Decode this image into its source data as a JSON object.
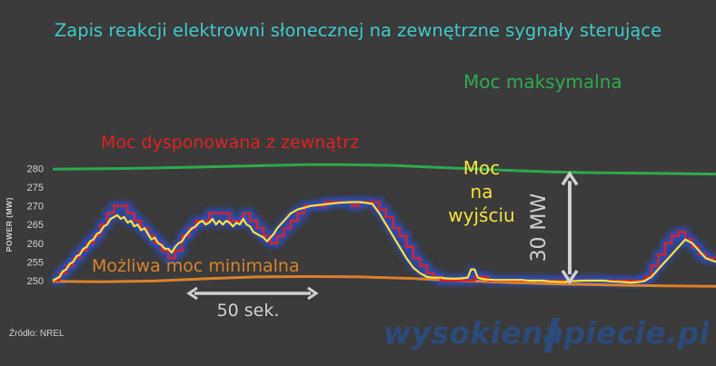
{
  "title": "Zapis reakcji elektrowni słonecznej na zewnętrzne sygnały sterujące",
  "source": "Źródło: NREL",
  "logo": {
    "text": "wysokienapiecie.pl",
    "color": "#2c4a7a"
  },
  "colors": {
    "background": "#3b3b3b",
    "max_power": "#2fa84f",
    "min_power": "#d9822b",
    "dispatch": "#e02020",
    "output": "#f5e23a",
    "glow": "#2b4fd9",
    "arrow": "#d0d0d0"
  },
  "chart_data": {
    "type": "line",
    "title": "Zapis reakcji elektrowni słonecznej na zewnętrzne sygnały sterujące",
    "ylabel": "POWER (MW)",
    "xlabel": "",
    "ylim": [
      248,
      283
    ],
    "yticks": [
      250,
      255,
      260,
      265,
      270,
      275,
      280
    ],
    "xlim": [
      0,
      195
    ],
    "grid": false,
    "series": [
      {
        "name": "Moc maksymalna",
        "color": "#2fa84f",
        "x": [
          0,
          15,
          30,
          45,
          60,
          75,
          85,
          100,
          115,
          130,
          145,
          160,
          175,
          195
        ],
        "y": [
          279.8,
          279.9,
          280.1,
          280.4,
          280.7,
          281.0,
          281.0,
          280.8,
          280.2,
          279.6,
          279.1,
          278.8,
          278.7,
          278.5
        ]
      },
      {
        "name": "Możliwa moc minimalna",
        "color": "#d9822b",
        "x": [
          0,
          15,
          30,
          45,
          60,
          75,
          90,
          105,
          120,
          135,
          150,
          165,
          180,
          195
        ],
        "y": [
          249.8,
          249.7,
          249.9,
          250.5,
          251.0,
          251.1,
          251.0,
          250.6,
          250.0,
          249.5,
          249.1,
          248.8,
          248.6,
          248.5
        ]
      },
      {
        "name": "Moc dysponowana z zewnątrz",
        "color": "#e02020",
        "x": [
          0,
          2,
          2,
          4,
          4,
          6,
          6,
          8,
          8,
          10,
          10,
          12,
          12,
          14,
          14,
          16,
          16,
          18,
          18,
          20,
          20,
          22,
          22,
          24,
          24,
          26,
          26,
          28,
          28,
          30,
          30,
          32,
          32,
          34,
          34,
          36,
          36,
          38,
          38,
          40,
          40,
          42,
          42,
          44,
          44,
          46,
          46,
          48,
          48,
          50,
          50,
          52,
          52,
          54,
          54,
          56,
          56,
          58,
          58,
          60,
          60,
          62,
          62,
          64,
          64,
          66,
          66,
          68,
          68,
          70,
          70,
          72,
          72,
          74,
          74,
          76,
          76,
          78,
          78,
          80,
          80,
          82,
          82,
          84,
          84,
          86,
          86,
          88,
          88,
          90,
          90,
          92,
          92,
          94,
          94,
          96,
          96,
          98,
          98,
          100,
          100,
          102,
          102,
          104,
          104,
          106,
          106,
          108,
          108,
          110,
          110,
          112,
          112,
          114,
          114,
          116,
          116,
          118,
          118,
          120,
          120,
          122,
          122,
          124,
          124,
          126,
          126,
          128,
          128,
          130,
          130,
          132,
          132,
          134,
          134,
          136,
          136,
          138,
          138,
          140,
          140,
          142,
          142,
          144,
          144,
          146,
          146,
          148,
          148,
          150,
          150,
          152,
          152,
          154,
          154,
          156,
          156,
          158,
          158,
          160,
          160,
          162,
          162,
          164,
          164,
          166,
          166,
          168,
          168,
          170,
          170,
          172,
          172,
          174,
          174,
          176,
          176,
          178,
          178,
          180,
          180,
          182,
          182,
          184,
          184,
          186,
          186,
          188,
          188,
          190,
          190,
          192,
          192,
          195
        ],
        "y": [
          250,
          250,
          252,
          252,
          254,
          254,
          256,
          256,
          258,
          258,
          260,
          260,
          262,
          262,
          265,
          265,
          268,
          268,
          270,
          270,
          270,
          270,
          268,
          268,
          266,
          266,
          264,
          264,
          262,
          262,
          260,
          260,
          258,
          258,
          256,
          256,
          258,
          258,
          262,
          262,
          264,
          264,
          266,
          266,
          266,
          266,
          268,
          268,
          268,
          268,
          268,
          268,
          266,
          266,
          266,
          266,
          268,
          268,
          266,
          266,
          264,
          264,
          262,
          262,
          260,
          260,
          262,
          262,
          264,
          264,
          266,
          266,
          268,
          268,
          270,
          270,
          270,
          270,
          270,
          270,
          271,
          271,
          271,
          271,
          271,
          271,
          271,
          271,
          270,
          270,
          271,
          271,
          271,
          271,
          271,
          271,
          269,
          269,
          267,
          267,
          264,
          264,
          262,
          262,
          259,
          259,
          256,
          256,
          254,
          254,
          252,
          252,
          251,
          251,
          250,
          250,
          250,
          250,
          250,
          250,
          250,
          250,
          250,
          250,
          251,
          251,
          251,
          251,
          250,
          250,
          250,
          250,
          250,
          250,
          250,
          250,
          250,
          250,
          250,
          250,
          250,
          250,
          250,
          250,
          250,
          250,
          250,
          250,
          250,
          250,
          250,
          250,
          250,
          250,
          250,
          250,
          250,
          250,
          250,
          250,
          250,
          250,
          250,
          250,
          250,
          250,
          250,
          250,
          250,
          250,
          250,
          250,
          250,
          250,
          251,
          251,
          254,
          254,
          257,
          257,
          260,
          260,
          262,
          262,
          263,
          263,
          261,
          261,
          259,
          259,
          257,
          257,
          256,
          256
        ]
      },
      {
        "name": "Moc na wyjściu",
        "color": "#f5e23a",
        "x": [
          0,
          2,
          3,
          4,
          5,
          6,
          7,
          8,
          9,
          10,
          11,
          12,
          13,
          14,
          15,
          16,
          17,
          18,
          19,
          20,
          21,
          22,
          23,
          24,
          25,
          26,
          27,
          28,
          29,
          30,
          31,
          32,
          33,
          34,
          35,
          36,
          37,
          38,
          39,
          40,
          41,
          42,
          43,
          44,
          45,
          46,
          47,
          48,
          49,
          50,
          51,
          52,
          53,
          54,
          55,
          56,
          57,
          58,
          59,
          60,
          61,
          62,
          63,
          64,
          65,
          66,
          67,
          68,
          69,
          70,
          72,
          74,
          76,
          78,
          80,
          82,
          84,
          86,
          88,
          90,
          92,
          94,
          96,
          98,
          100,
          102,
          104,
          106,
          108,
          110,
          112,
          114,
          116,
          118,
          120,
          122,
          123,
          124,
          125,
          126,
          128,
          130,
          132,
          134,
          136,
          138,
          140,
          142,
          144,
          146,
          148,
          150,
          152,
          154,
          156,
          158,
          160,
          162,
          164,
          166,
          168,
          170,
          172,
          174,
          176,
          178,
          180,
          182,
          184,
          186,
          188,
          190,
          192,
          195
        ],
        "y": [
          250,
          251,
          252.5,
          253,
          254.5,
          255,
          256.5,
          257,
          258.5,
          259,
          260.5,
          261,
          262.5,
          263,
          264.5,
          265,
          266.5,
          267,
          267.5,
          266.5,
          267,
          265.5,
          266,
          264.5,
          265,
          263.5,
          264,
          262.5,
          261,
          261.5,
          260,
          259.5,
          258.5,
          258.5,
          257.5,
          259,
          260,
          260.5,
          262,
          263,
          264,
          264.5,
          265.5,
          266,
          265,
          265.5,
          266.5,
          265,
          266,
          265,
          266,
          265.5,
          264.5,
          265.5,
          265,
          266.5,
          265,
          264.5,
          263,
          262.5,
          262,
          261.5,
          260.5,
          261.5,
          262.5,
          264,
          265,
          266,
          267,
          268,
          269,
          269.5,
          270,
          270.2,
          270.4,
          270.6,
          270.8,
          270.9,
          271,
          271,
          270.8,
          270.5,
          268,
          265,
          262,
          259,
          256,
          253.5,
          252,
          251,
          250.8,
          250.8,
          250.6,
          250.5,
          250.6,
          250.8,
          253,
          253,
          250.8,
          250.5,
          250.3,
          250.2,
          250.2,
          250.2,
          250.2,
          250.2,
          250,
          250,
          250,
          249.8,
          249.7,
          249.6,
          249.8,
          249.9,
          250,
          250,
          250,
          250,
          249.8,
          249.7,
          249.6,
          249.5,
          249.6,
          249.9,
          251,
          253,
          255,
          257,
          259,
          261,
          260,
          258,
          256,
          255
        ]
      }
    ],
    "annotations": [
      {
        "text": "Moc maksymalna",
        "color": "#2fa84f"
      },
      {
        "text": "Moc dysponowana z zewnątrz",
        "color": "#e02020"
      },
      {
        "text": "Moc na wyjściu",
        "lines": [
          "Moc",
          "na",
          "wyjściu"
        ],
        "color": "#f5e23a"
      },
      {
        "text": "Możliwa moc minimalna",
        "color": "#d9822b"
      },
      {
        "text": "30 MW",
        "color": "#d0d0d0"
      },
      {
        "text": "50 sek.",
        "color": "#d0d0d0"
      }
    ],
    "span_30mw": [
      250,
      280
    ],
    "span_50s": [
      30,
      60
    ]
  }
}
